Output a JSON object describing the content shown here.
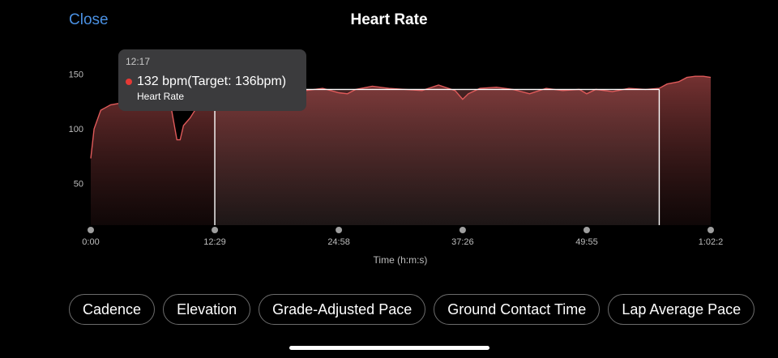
{
  "header": {
    "close_label": "Close",
    "title": "Heart Rate"
  },
  "tooltip": {
    "time": "12:17",
    "value_text": "132 bpm(Target: 136bpm)",
    "series_name": "Heart Rate",
    "dot_color": "#e53935"
  },
  "chips": [
    "Cadence",
    "Elevation",
    "Grade-Adjusted Pace",
    "Ground Contact Time",
    "Lap Average Pace"
  ],
  "colors": {
    "accent": "#4a90e2",
    "line": "#e05a5a",
    "fill_top": "#7a3434"
  },
  "chart_data": {
    "type": "area",
    "xlabel": "Time (h:m:s)",
    "ylabel": "",
    "x_tick_labels": [
      "0:00",
      "12:29",
      "24:58",
      "37:26",
      "49:55",
      "1:02:2"
    ],
    "x_tick_seconds": [
      0,
      749,
      1498,
      2246,
      2995,
      3744
    ],
    "y_ticks": [
      50,
      100,
      150
    ],
    "ylim": [
      12,
      160
    ],
    "xlim_seconds": [
      0,
      3744
    ],
    "highlight_range": {
      "start": "12:29",
      "end": "57:13",
      "target_bpm": 136
    },
    "series": [
      {
        "name": "Heart Rate",
        "x_seconds": [
          0,
          20,
          60,
          120,
          200,
          300,
          400,
          480,
          520,
          540,
          560,
          600,
          650,
          700,
          749,
          800,
          900,
          1000,
          1100,
          1200,
          1300,
          1400,
          1498,
          1550,
          1600,
          1700,
          1800,
          1900,
          2000,
          2100,
          2200,
          2246,
          2280,
          2350,
          2450,
          2550,
          2650,
          2750,
          2850,
          2950,
          2995,
          3050,
          3150,
          3250,
          3350,
          3432,
          3480,
          3550,
          3600,
          3650,
          3700,
          3744
        ],
        "values": [
          73,
          100,
          117,
          122,
          124,
          125,
          125,
          124,
          90,
          90,
          103,
          110,
          122,
          129,
          133,
          134,
          138,
          136,
          137,
          130,
          135,
          137,
          133,
          132,
          136,
          139,
          137,
          136,
          135,
          140,
          135,
          127,
          132,
          137,
          138,
          136,
          132,
          137,
          135,
          136,
          132,
          136,
          134,
          137,
          136,
          137,
          141,
          143,
          147,
          148,
          148,
          147
        ]
      }
    ]
  }
}
